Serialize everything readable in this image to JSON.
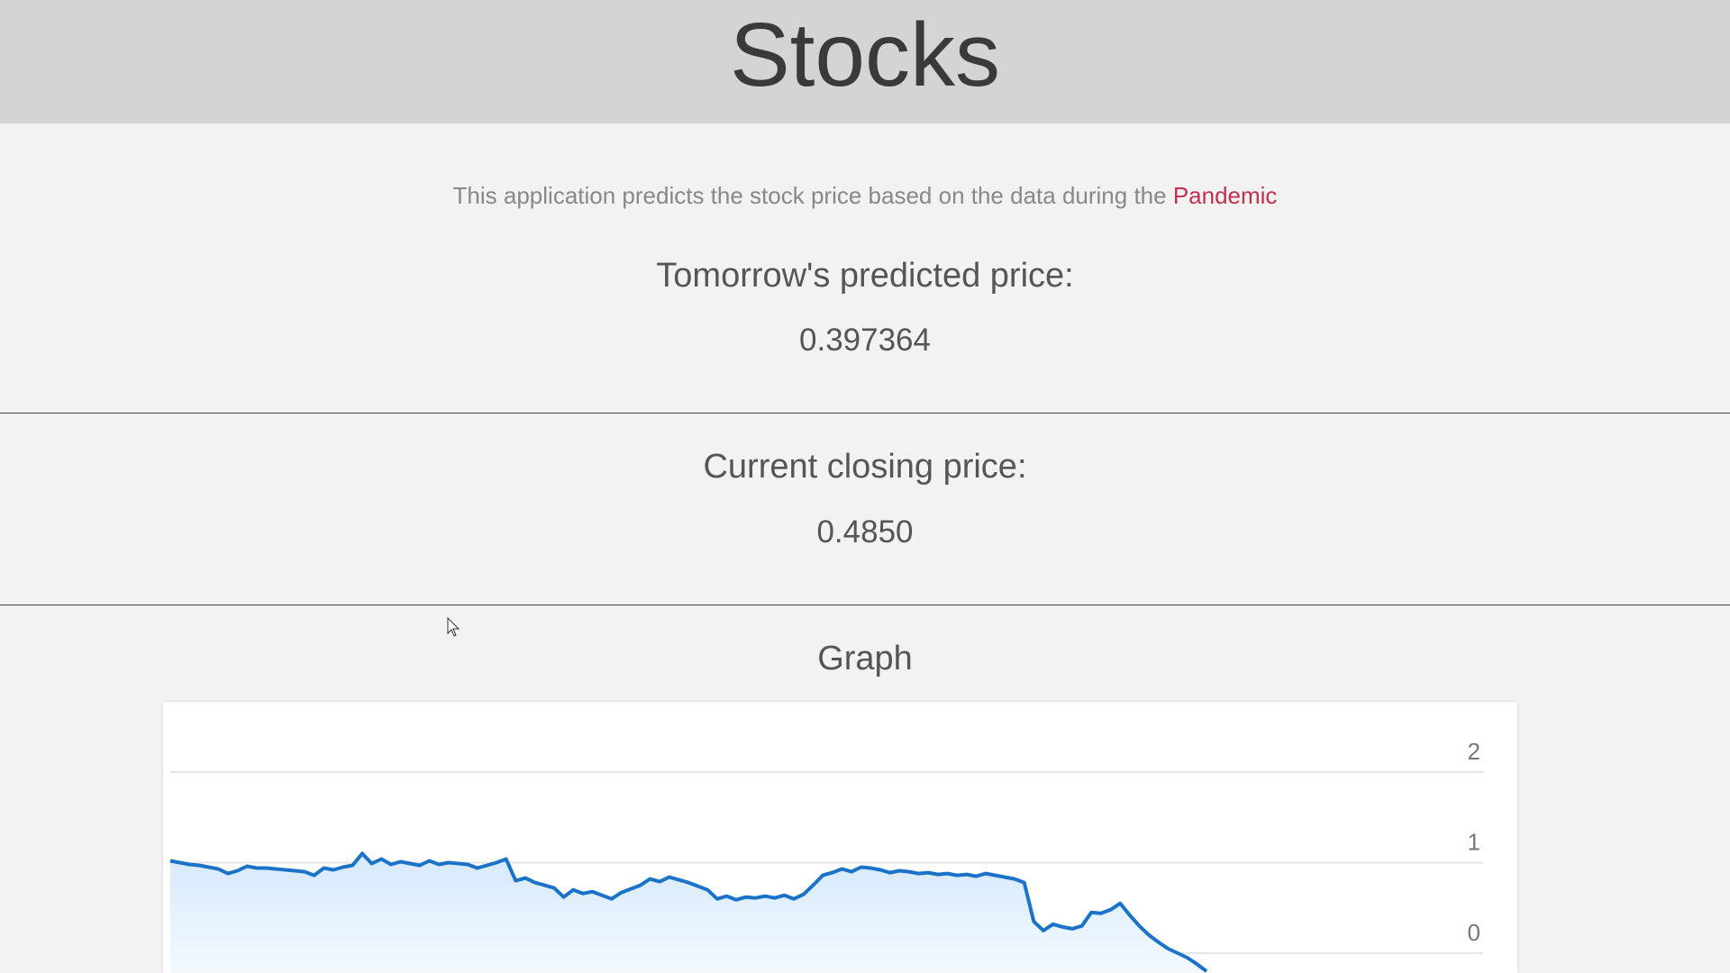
{
  "header": {
    "title": "Stocks"
  },
  "intro": {
    "text": "This application predicts the stock price based on the data during the ",
    "highlight": "Pandemic"
  },
  "predicted": {
    "label": "Tomorrow's predicted price:",
    "value": "0.397364"
  },
  "closing": {
    "label": "Current closing price:",
    "value": "0.4850"
  },
  "graph": {
    "title": "Graph"
  },
  "colors": {
    "line": "#1a73c8",
    "area": "#e3f0fc",
    "accent": "#c3304e",
    "grid": "#e6e6e6"
  },
  "chart_data": {
    "type": "area",
    "ylim": [
      -0.2,
      2.2
    ],
    "yticks": [
      2,
      1,
      0
    ],
    "y_axis_position": "right",
    "grid": true,
    "values": [
      1.02,
      1.0,
      0.98,
      0.97,
      0.95,
      0.93,
      0.88,
      0.91,
      0.96,
      0.94,
      0.94,
      0.93,
      0.92,
      0.91,
      0.9,
      0.86,
      0.94,
      0.92,
      0.95,
      0.97,
      1.1,
      0.99,
      1.04,
      0.98,
      1.01,
      0.99,
      0.97,
      1.02,
      0.98,
      1.0,
      0.99,
      0.98,
      0.94,
      0.97,
      1.0,
      1.04,
      0.8,
      0.83,
      0.78,
      0.75,
      0.72,
      0.62,
      0.7,
      0.66,
      0.68,
      0.64,
      0.6,
      0.67,
      0.71,
      0.75,
      0.82,
      0.79,
      0.84,
      0.81,
      0.78,
      0.74,
      0.7,
      0.6,
      0.63,
      0.59,
      0.62,
      0.61,
      0.63,
      0.61,
      0.64,
      0.6,
      0.65,
      0.75,
      0.86,
      0.89,
      0.93,
      0.9,
      0.95,
      0.94,
      0.92,
      0.89,
      0.91,
      0.9,
      0.88,
      0.89,
      0.87,
      0.88,
      0.86,
      0.87,
      0.85,
      0.88,
      0.86,
      0.84,
      0.82,
      0.78,
      0.35,
      0.25,
      0.32,
      0.29,
      0.27,
      0.3,
      0.45,
      0.44,
      0.48,
      0.55,
      0.42,
      0.3,
      0.2,
      0.12,
      0.05,
      0.0,
      -0.05,
      -0.12,
      -0.2
    ]
  }
}
